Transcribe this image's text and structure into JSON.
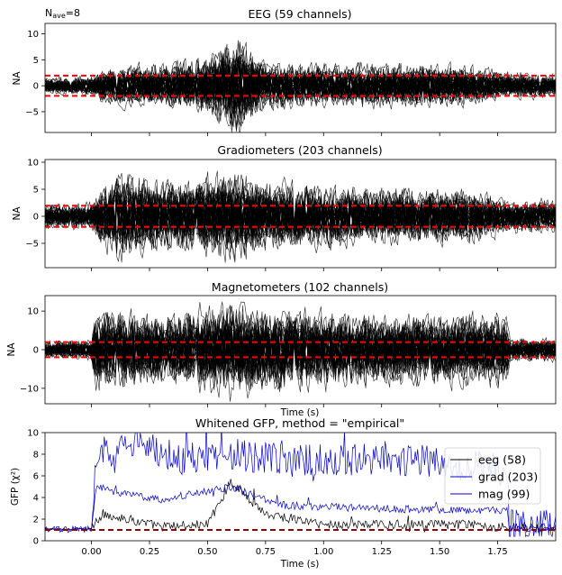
{
  "nave_label": {
    "prefix": "N",
    "sub": "ave",
    "suffix": "=8"
  },
  "chart_data": [
    {
      "type": "line",
      "title": "EEG (59 channels)",
      "xlabel": "",
      "ylabel": "NA",
      "xlim": [
        -0.2,
        2.0
      ],
      "ylim": [
        -9,
        12
      ],
      "yticks": [
        -5,
        0,
        5,
        10
      ],
      "ytick_labels": [
        "−5",
        "0",
        "5",
        "10"
      ],
      "reference_lines": [
        -1.96,
        1.96
      ],
      "n_channels": 59,
      "baseline_amplitude": 1.5,
      "envelope": [
        {
          "t": -0.2,
          "amp": 1.6
        },
        {
          "t": 0.0,
          "amp": 1.8
        },
        {
          "t": 0.05,
          "amp": 3.5
        },
        {
          "t": 0.3,
          "amp": 4.0
        },
        {
          "t": 0.5,
          "amp": 5.5
        },
        {
          "t": 0.62,
          "amp": 9.5
        },
        {
          "t": 0.75,
          "amp": 4.5
        },
        {
          "t": 1.0,
          "amp": 4.0
        },
        {
          "t": 1.3,
          "amp": 4.0
        },
        {
          "t": 1.6,
          "amp": 3.8
        },
        {
          "t": 1.8,
          "amp": 2.5
        },
        {
          "t": 2.0,
          "amp": 2.2
        }
      ]
    },
    {
      "type": "line",
      "title": "Gradiometers (203 channels)",
      "xlabel": "",
      "ylabel": "NA",
      "xlim": [
        -0.2,
        2.0
      ],
      "ylim": [
        -9.5,
        10.5
      ],
      "yticks": [
        -5,
        0,
        5,
        10
      ],
      "ytick_labels": [
        "−5",
        "0",
        "5",
        "10"
      ],
      "reference_lines": [
        -1.96,
        1.96
      ],
      "n_channels": 203,
      "baseline_amplitude": 2.3,
      "envelope": [
        {
          "t": -0.2,
          "amp": 2.3
        },
        {
          "t": 0.0,
          "amp": 2.5
        },
        {
          "t": 0.05,
          "amp": 6.0
        },
        {
          "t": 0.15,
          "amp": 8.0
        },
        {
          "t": 0.3,
          "amp": 6.0
        },
        {
          "t": 0.6,
          "amp": 8.0
        },
        {
          "t": 0.8,
          "amp": 6.0
        },
        {
          "t": 1.2,
          "amp": 5.0
        },
        {
          "t": 1.6,
          "amp": 5.0
        },
        {
          "t": 1.8,
          "amp": 3.0
        },
        {
          "t": 2.0,
          "amp": 3.0
        }
      ]
    },
    {
      "type": "line",
      "title": "Magnetometers (102 channels)",
      "xlabel": "Time (s)",
      "ylabel": "NA",
      "xlim": [
        -0.2,
        2.0
      ],
      "ylim": [
        -14,
        14
      ],
      "yticks": [
        -10,
        0,
        10
      ],
      "ytick_labels": [
        "−10",
        "0",
        "10"
      ],
      "reference_lines": [
        -1.96,
        1.96
      ],
      "n_channels": 102,
      "baseline_amplitude": 2.3,
      "envelope": [
        {
          "t": -0.2,
          "amp": 2.3
        },
        {
          "t": 0.0,
          "amp": 2.6
        },
        {
          "t": 0.01,
          "amp": 10.0
        },
        {
          "t": 0.3,
          "amp": 9.0
        },
        {
          "t": 0.6,
          "amp": 12.0
        },
        {
          "t": 0.9,
          "amp": 10.0
        },
        {
          "t": 1.3,
          "amp": 9.0
        },
        {
          "t": 1.79,
          "amp": 9.0
        },
        {
          "t": 1.8,
          "amp": 3.0
        },
        {
          "t": 2.0,
          "amp": 3.0
        }
      ]
    },
    {
      "type": "line",
      "title": "Whitened GFP, method = \"empirical\"",
      "xlabel": "Time (s)",
      "ylabel": "GFP (χ²)",
      "xlim": [
        -0.2,
        2.0
      ],
      "ylim": [
        0,
        10
      ],
      "yticks": [
        0,
        2,
        4,
        6,
        8,
        10
      ],
      "ytick_labels": [
        "0",
        "2",
        "4",
        "6",
        "8",
        "10"
      ],
      "xticks": [
        0.0,
        0.25,
        0.5,
        0.75,
        1.0,
        1.25,
        1.5,
        1.75
      ],
      "xtick_labels": [
        "0.00",
        "0.25",
        "0.50",
        "0.75",
        "1.00",
        "1.25",
        "1.50",
        "1.75"
      ],
      "reference_lines": [
        1.0
      ],
      "legend_position": "upper right",
      "series": [
        {
          "name": "eeg (58)",
          "color": "#000000",
          "profile": [
            [
              -0.2,
              1.1
            ],
            [
              0.0,
              1.1
            ],
            [
              0.05,
              2.5
            ],
            [
              0.3,
              1.3
            ],
            [
              0.5,
              1.5
            ],
            [
              0.6,
              5.5
            ],
            [
              0.75,
              2.5
            ],
            [
              1.0,
              1.5
            ],
            [
              1.3,
              1.5
            ],
            [
              1.6,
              1.5
            ],
            [
              1.8,
              1.2
            ],
            [
              2.0,
              1.2
            ]
          ],
          "jitter": 0.45
        },
        {
          "name": "grad (203)",
          "color": "#0000cc",
          "profile": [
            [
              -0.2,
              1.0
            ],
            [
              0.0,
              1.1
            ],
            [
              0.02,
              8.0
            ],
            [
              0.2,
              9.0
            ],
            [
              0.4,
              7.5
            ],
            [
              0.6,
              8.0
            ],
            [
              0.8,
              7.5
            ],
            [
              1.1,
              7.5
            ],
            [
              1.4,
              7.5
            ],
            [
              1.6,
              7.0
            ],
            [
              1.79,
              6.5
            ],
            [
              1.8,
              1.5
            ],
            [
              2.0,
              1.5
            ]
          ],
          "jitter": 1.5
        },
        {
          "name": "mag (99)",
          "color": "#0000cc",
          "profile": [
            [
              -0.2,
              1.0
            ],
            [
              0.0,
              1.1
            ],
            [
              0.02,
              5.0
            ],
            [
              0.1,
              4.5
            ],
            [
              0.3,
              3.8
            ],
            [
              0.6,
              5.0
            ],
            [
              0.8,
              3.3
            ],
            [
              1.2,
              3.0
            ],
            [
              1.6,
              2.8
            ],
            [
              1.79,
              2.8
            ],
            [
              1.8,
              1.2
            ],
            [
              2.0,
              1.2
            ]
          ],
          "jitter": 0.35
        }
      ]
    }
  ]
}
